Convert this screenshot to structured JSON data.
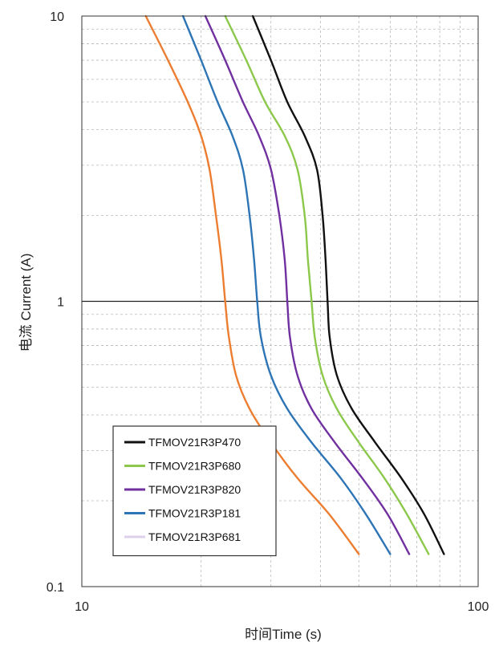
{
  "chart_data": {
    "type": "line",
    "title": "",
    "xlabel": "时间Time (s)",
    "ylabel": "电流 Current (A)",
    "x_scale": "log",
    "y_scale": "log",
    "xlim": [
      10,
      100
    ],
    "ylim": [
      0.1,
      10
    ],
    "x_tick_labels": [
      "10",
      "100"
    ],
    "y_tick_labels": [
      "10",
      "1",
      "0.1"
    ],
    "grid": true,
    "legend_position": "bottom-left",
    "series": [
      {
        "name": "TFMOV21R3P470",
        "color": "#111111",
        "points": [
          [
            27.0,
            10
          ],
          [
            30.0,
            7.0
          ],
          [
            33.0,
            5.0
          ],
          [
            36.5,
            3.8
          ],
          [
            39.2,
            2.9
          ],
          [
            40.5,
            2.0
          ],
          [
            41.2,
            1.4
          ],
          [
            41.7,
            1.0
          ],
          [
            42.2,
            0.75
          ],
          [
            44.0,
            0.55
          ],
          [
            48.0,
            0.42
          ],
          [
            55.0,
            0.32
          ],
          [
            64.0,
            0.24
          ],
          [
            73.0,
            0.18
          ],
          [
            82.0,
            0.13
          ]
        ]
      },
      {
        "name": "TFMOV21R3P680",
        "color": "#8cc84b",
        "points": [
          [
            23.0,
            10
          ],
          [
            26.0,
            7.0
          ],
          [
            29.0,
            5.0
          ],
          [
            32.5,
            3.8
          ],
          [
            35.0,
            2.9
          ],
          [
            36.5,
            2.0
          ],
          [
            37.2,
            1.4
          ],
          [
            38.0,
            1.0
          ],
          [
            38.7,
            0.75
          ],
          [
            40.5,
            0.55
          ],
          [
            44.0,
            0.42
          ],
          [
            50.0,
            0.32
          ],
          [
            58.0,
            0.24
          ],
          [
            66.0,
            0.18
          ],
          [
            75.0,
            0.13
          ]
        ]
      },
      {
        "name": "TFMOV21R3P820",
        "color": "#7030a0",
        "points": [
          [
            20.5,
            10
          ],
          [
            23.0,
            7.0
          ],
          [
            25.5,
            5.0
          ],
          [
            28.0,
            3.8
          ],
          [
            30.0,
            2.9
          ],
          [
            31.5,
            2.0
          ],
          [
            32.5,
            1.4
          ],
          [
            33.0,
            1.0
          ],
          [
            33.5,
            0.75
          ],
          [
            35.0,
            0.55
          ],
          [
            38.0,
            0.42
          ],
          [
            43.5,
            0.32
          ],
          [
            51.0,
            0.24
          ],
          [
            59.0,
            0.18
          ],
          [
            67.0,
            0.13
          ]
        ]
      },
      {
        "name": "TFMOV21R3P181",
        "color": "#2e75b6",
        "points": [
          [
            18.0,
            10
          ],
          [
            20.0,
            7.0
          ],
          [
            22.0,
            5.0
          ],
          [
            24.0,
            3.8
          ],
          [
            25.5,
            2.9
          ],
          [
            26.5,
            2.0
          ],
          [
            27.2,
            1.4
          ],
          [
            27.7,
            1.0
          ],
          [
            28.3,
            0.75
          ],
          [
            30.0,
            0.55
          ],
          [
            33.0,
            0.42
          ],
          [
            38.0,
            0.32
          ],
          [
            45.0,
            0.24
          ],
          [
            52.0,
            0.18
          ],
          [
            60.0,
            0.13
          ]
        ]
      },
      {
        "name": "TFMOV21R3P681",
        "color": "#ddd0ea",
        "points": []
      },
      {
        "name": "",
        "color": "#ed7d31",
        "points": [
          [
            14.5,
            10
          ],
          [
            16.5,
            7.0
          ],
          [
            18.5,
            5.0
          ],
          [
            20.0,
            3.8
          ],
          [
            21.0,
            2.9
          ],
          [
            21.8,
            2.0
          ],
          [
            22.5,
            1.4
          ],
          [
            23.0,
            1.0
          ],
          [
            23.5,
            0.75
          ],
          [
            24.5,
            0.55
          ],
          [
            26.5,
            0.42
          ],
          [
            30.0,
            0.32
          ],
          [
            35.0,
            0.24
          ],
          [
            42.0,
            0.18
          ],
          [
            50.0,
            0.13
          ]
        ]
      }
    ]
  }
}
